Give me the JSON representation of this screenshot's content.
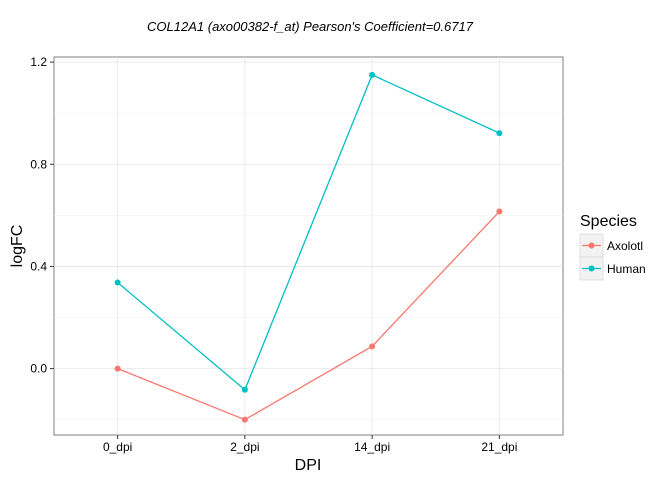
{
  "chart_data": {
    "type": "line",
    "title": "COL12A1  (axo00382-f_at) Pearson's Coefficient=0.6717",
    "xlabel": "DPI",
    "ylabel": "logFC",
    "categories": [
      "0_dpi",
      "2_dpi",
      "14_dpi",
      "21_dpi"
    ],
    "ylim": [
      -0.26,
      1.22
    ],
    "yticks": [
      0.0,
      0.4,
      0.8,
      1.2
    ],
    "ytick_labels": [
      "0.0",
      "0.4",
      "0.8",
      "1.2"
    ],
    "grid": true,
    "legend": {
      "title": "Species",
      "placement": "right"
    },
    "series": [
      {
        "name": "Axolotl",
        "color": "#F8766D",
        "values": [
          0.0,
          -0.2,
          0.087,
          0.615
        ]
      },
      {
        "name": "Human",
        "color": "#00BFC4",
        "values": [
          0.337,
          -0.083,
          1.15,
          0.922
        ]
      }
    ]
  }
}
